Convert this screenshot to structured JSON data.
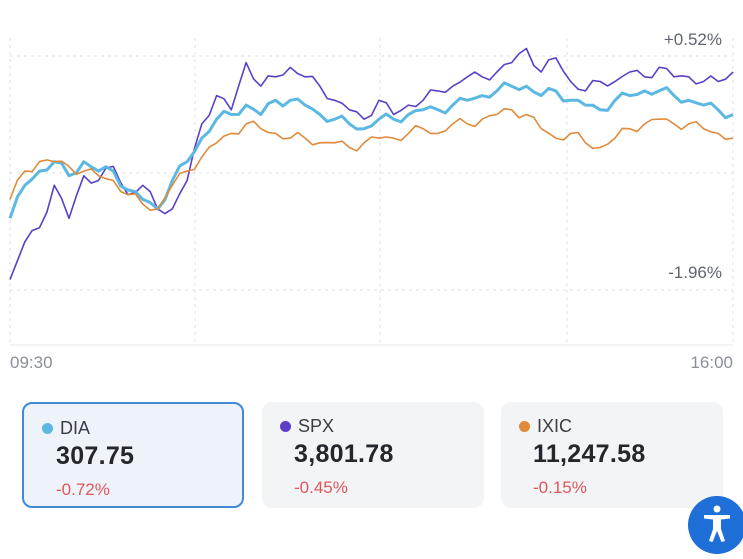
{
  "chart": {
    "y_axis_labels": {
      "top": "+0.52%",
      "bottom": "-1.96%"
    },
    "time_labels": {
      "start": "09:30",
      "end": "16:00"
    }
  },
  "chart_data": {
    "type": "line",
    "title": "",
    "xlabel": "",
    "ylabel": "",
    "x_range": [
      "09:30",
      "16:00"
    ],
    "ylim_percent": [
      -1.96,
      0.52
    ],
    "grid": true,
    "series": [
      {
        "name": "SPX",
        "color": "#5b3fc9",
        "values": [
          -1.85,
          -1.45,
          -1.3,
          -0.85,
          -1.2,
          -0.75,
          -0.8,
          -0.65,
          -0.95,
          -0.85,
          -1.1,
          -1.1,
          -0.8,
          -0.2,
          0.1,
          -0.05,
          0.45,
          0.2,
          0.3,
          0.4,
          0.3,
          0.2,
          0.05,
          -0.05,
          -0.15,
          0.05,
          -0.1,
          0.0,
          0.05,
          0.15,
          0.2,
          0.3,
          0.3,
          0.35,
          0.45,
          0.6,
          0.35,
          0.5,
          0.25,
          0.15,
          0.25,
          0.25,
          0.35,
          0.3,
          0.4,
          0.3,
          0.3,
          0.25,
          0.25,
          0.35
        ]
      },
      {
        "name": "DIA",
        "color": "#5bb8e3",
        "values": [
          -1.2,
          -0.85,
          -0.7,
          -0.6,
          -0.75,
          -0.6,
          -0.7,
          -0.7,
          -0.9,
          -1.0,
          -1.1,
          -0.8,
          -0.6,
          -0.35,
          -0.15,
          -0.1,
          0.0,
          -0.1,
          0.05,
          0.05,
          0.0,
          -0.1,
          -0.15,
          -0.2,
          -0.25,
          -0.15,
          -0.15,
          -0.1,
          -0.05,
          -0.05,
          0.0,
          0.05,
          0.1,
          0.15,
          0.2,
          0.2,
          0.1,
          0.15,
          0.05,
          0.0,
          -0.05,
          0.05,
          0.1,
          0.15,
          0.15,
          0.1,
          0.05,
          0.0,
          -0.05,
          -0.1
        ]
      },
      {
        "name": "IXIC",
        "color": "#e08a3c",
        "values": [
          -1.0,
          -0.7,
          -0.6,
          -0.6,
          -0.65,
          -0.7,
          -0.75,
          -0.8,
          -0.95,
          -1.05,
          -1.1,
          -0.85,
          -0.7,
          -0.55,
          -0.4,
          -0.3,
          -0.2,
          -0.25,
          -0.3,
          -0.35,
          -0.35,
          -0.4,
          -0.4,
          -0.45,
          -0.4,
          -0.35,
          -0.35,
          -0.3,
          -0.25,
          -0.3,
          -0.2,
          -0.2,
          -0.15,
          -0.1,
          -0.05,
          -0.1,
          -0.25,
          -0.35,
          -0.3,
          -0.4,
          -0.45,
          -0.35,
          -0.25,
          -0.2,
          -0.15,
          -0.2,
          -0.2,
          -0.25,
          -0.3,
          -0.35
        ]
      }
    ]
  },
  "tickers": [
    {
      "symbol": "DIA",
      "price": "307.75",
      "change": "-0.72%",
      "dot_color": "#5bb8e3",
      "selected": true
    },
    {
      "symbol": "SPX",
      "price": "3,801.78",
      "change": "-0.45%",
      "dot_color": "#5b3fc9",
      "selected": false
    },
    {
      "symbol": "IXIC",
      "price": "11,247.58",
      "change": "-0.15%",
      "dot_color": "#e08a3c",
      "selected": false
    }
  ],
  "colors": {
    "accent": "#3f8bd8",
    "negative": "#e0555a",
    "a11y_button": "#1f6fd8"
  },
  "icons": {
    "accessibility": "accessibility-icon"
  }
}
